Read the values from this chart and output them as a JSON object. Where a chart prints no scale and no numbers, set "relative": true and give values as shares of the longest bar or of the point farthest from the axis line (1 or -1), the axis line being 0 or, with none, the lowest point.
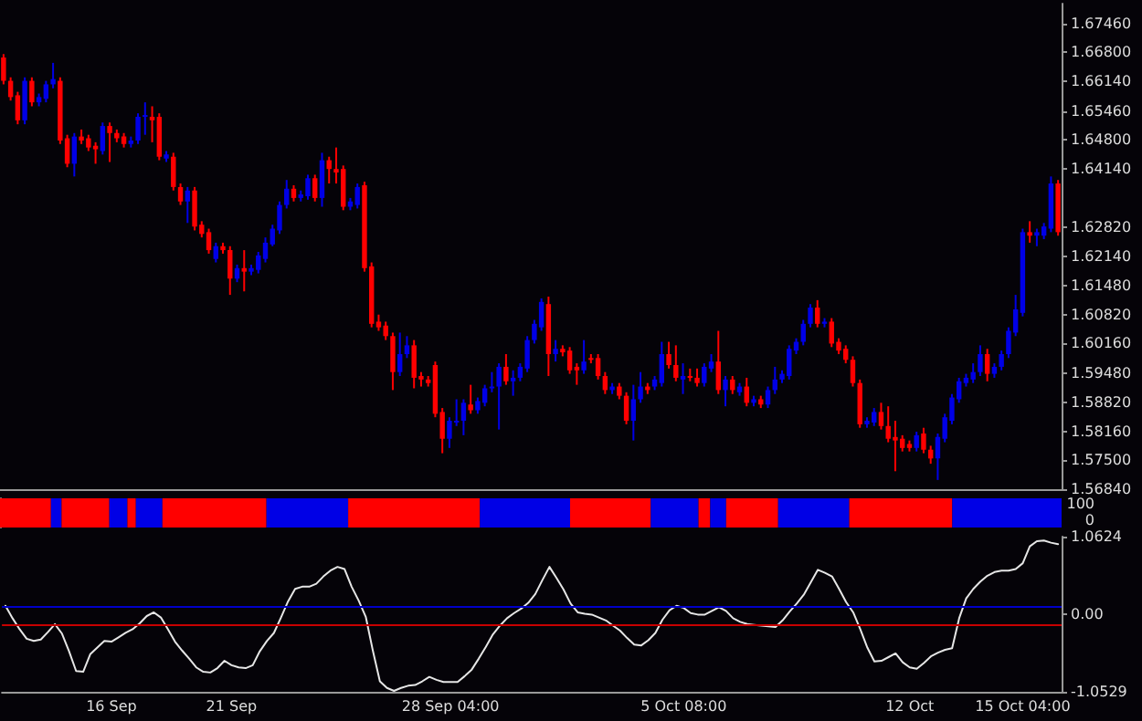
{
  "chart_data": [
    {
      "type": "candlestick",
      "categories": [
        null,
        null,
        null,
        null,
        null,
        null,
        null,
        null,
        null,
        null,
        null,
        null,
        null,
        null,
        null,
        null,
        null,
        null,
        null,
        null,
        null,
        null,
        null,
        null,
        null,
        null,
        null,
        null,
        null,
        null,
        null,
        null,
        null,
        null,
        null,
        null,
        null,
        null,
        null,
        null,
        null,
        null,
        null,
        null,
        null,
        null,
        null,
        null,
        null,
        null,
        null,
        null,
        null,
        null,
        null,
        null,
        null,
        null,
        null,
        null,
        null,
        null,
        null,
        null,
        null,
        null,
        null,
        null,
        null,
        null,
        null,
        null,
        null,
        null,
        null,
        null,
        null,
        null,
        null,
        null,
        null,
        null,
        null,
        null,
        null,
        null,
        null,
        null,
        null,
        null,
        null,
        null,
        null,
        null,
        null,
        null,
        null,
        null,
        null,
        null,
        null,
        null,
        null,
        null,
        null,
        null,
        null,
        null,
        null,
        null,
        null,
        null,
        null,
        null,
        null,
        null,
        null,
        null,
        null,
        null,
        null,
        null,
        null,
        null,
        null,
        null,
        null,
        null,
        null,
        null,
        null,
        null,
        null,
        null,
        null,
        null,
        null,
        null,
        null,
        null,
        null,
        null,
        null,
        null,
        null,
        null,
        null,
        null,
        null,
        null
      ],
      "colors": [
        "#ff0000",
        "#ff0000",
        "#ff0000",
        "#0000e6",
        "#ff0000",
        "#0000e6",
        "#0000e6",
        "#0000e6",
        "#ff0000",
        "#ff0000",
        "#0000e6",
        "#ff0000",
        "#ff0000",
        "#ff0000",
        "#0000e6",
        "#ff0000",
        "#ff0000",
        "#ff0000",
        "#0000e6",
        "#0000e6",
        "#0000e6",
        "#ff0000",
        "#ff0000",
        "#0000e6",
        "#ff0000",
        "#ff0000",
        "#0000e6",
        "#ff0000",
        "#ff0000",
        "#ff0000",
        "#0000e6",
        "#ff0000",
        "#ff0000",
        "#0000e6",
        "#ff0000",
        "#0000e6",
        "#0000e6",
        "#0000e6",
        "#0000e6",
        "#0000e6",
        "#0000e6",
        "#ff0000",
        "#0000e6",
        "#0000e6",
        "#ff0000",
        "#0000e6",
        "#ff0000",
        "#ff0000",
        "#ff0000",
        "#0000e6",
        "#0000e6",
        "#ff0000",
        "#ff0000",
        "#ff0000",
        "#ff0000",
        "#ff0000",
        "#0000e6",
        "#0000e6",
        "#ff0000",
        "#ff0000",
        "#ff0000",
        "#ff0000",
        "#ff0000",
        "#0000e6",
        "#0000e6",
        "#0000e6",
        "#ff0000",
        "#0000e6",
        "#0000e6",
        "#0000e6",
        "#0000e6",
        "#ff0000",
        "#0000e6",
        "#0000e6",
        "#0000e6",
        "#0000e6",
        "#0000e6",
        "#ff0000",
        "#0000e6",
        "#ff0000",
        "#ff0000",
        "#ff0000",
        "#0000e6",
        "#ff0000",
        "#ff0000",
        "#ff0000",
        "#0000e6",
        "#ff0000",
        "#ff0000",
        "#0000e6",
        "#0000e6",
        "#ff0000",
        "#0000e6",
        "#0000e6",
        "#ff0000",
        "#ff0000",
        "#0000e6",
        "#ff0000",
        "#ff0000",
        "#0000e6",
        "#0000e6",
        "#ff0000",
        "#0000e6",
        "#ff0000",
        "#0000e6",
        "#ff0000",
        "#0000e6",
        "#ff0000",
        "#0000e6",
        "#0000e6",
        "#0000e6",
        "#0000e6",
        "#0000e6",
        "#0000e6",
        "#0000e6",
        "#ff0000",
        "#0000e6",
        "#ff0000",
        "#ff0000",
        "#ff0000",
        "#ff0000",
        "#ff0000",
        "#0000e6",
        "#0000e6",
        "#ff0000",
        "#ff0000",
        "#ff0000",
        "#ff0000",
        "#ff0000",
        "#0000e6",
        "#ff0000",
        "#ff0000",
        "#0000e6",
        "#0000e6",
        "#0000e6",
        "#0000e6",
        "#0000e6",
        "#0000e6",
        "#0000e6",
        "#ff0000",
        "#0000e6",
        "#0000e6",
        "#0000e6",
        "#0000e6",
        "#0000e6",
        "#ff0000",
        "#0000e6",
        "#0000e6",
        "#0000e6",
        "#ff0000"
      ],
      "ohlc": [
        [
          1.6668,
          1.6676,
          1.6607,
          1.6615
        ],
        [
          1.6615,
          1.6623,
          1.657,
          1.6578
        ],
        [
          1.6582,
          1.659,
          1.6516,
          1.6525
        ],
        [
          1.6525,
          1.6623,
          1.6516,
          1.6615
        ],
        [
          1.6615,
          1.6623,
          1.6557,
          1.6566
        ],
        [
          1.6566,
          1.6586,
          1.6557,
          1.6578
        ],
        [
          1.6574,
          1.6615,
          1.6566,
          1.6607
        ],
        [
          1.6607,
          1.6656,
          1.6598,
          1.6619
        ],
        [
          1.6615,
          1.6623,
          1.6471,
          1.6479
        ],
        [
          1.6484,
          1.6492,
          1.6418,
          1.6426
        ],
        [
          1.6426,
          1.6496,
          1.6397,
          1.6488
        ],
        [
          1.6488,
          1.6504,
          1.6471,
          1.6479
        ],
        [
          1.6484,
          1.6492,
          1.6455,
          1.6463
        ],
        [
          1.6467,
          1.6475,
          1.6426,
          1.6459
        ],
        [
          1.6455,
          1.652,
          1.6447,
          1.6512
        ],
        [
          1.6512,
          1.652,
          1.643,
          1.6496
        ],
        [
          1.6496,
          1.6504,
          1.6475,
          1.6484
        ],
        [
          1.6488,
          1.6496,
          1.6463,
          1.6471
        ],
        [
          1.6471,
          1.6488,
          1.6463,
          1.6479
        ],
        [
          1.6479,
          1.6541,
          1.6471,
          1.6533
        ],
        [
          1.6537,
          1.6566,
          1.6492,
          1.6537
        ],
        [
          1.6533,
          1.6557,
          1.6475,
          1.6525
        ],
        [
          1.6533,
          1.6541,
          1.6434,
          1.6442
        ],
        [
          1.6438,
          1.6455,
          1.643,
          1.6447
        ],
        [
          1.6442,
          1.6451,
          1.6365,
          1.6373
        ],
        [
          1.6373,
          1.6381,
          1.6332,
          1.634
        ],
        [
          1.634,
          1.6373,
          1.6291,
          1.6365
        ],
        [
          1.6365,
          1.6373,
          1.6274,
          1.6283
        ],
        [
          1.6287,
          1.6295,
          1.6258,
          1.6266
        ],
        [
          1.627,
          1.6278,
          1.6221,
          1.6229
        ],
        [
          1.6209,
          1.6246,
          1.6201,
          1.6238
        ],
        [
          1.6238,
          1.6246,
          1.6221,
          1.6229
        ],
        [
          1.6229,
          1.6238,
          1.6127,
          1.6164
        ],
        [
          1.6164,
          1.6196,
          1.6156,
          1.6188
        ],
        [
          1.6188,
          1.6229,
          1.6135,
          1.618
        ],
        [
          1.618,
          1.6196,
          1.6172,
          1.6188
        ],
        [
          1.6184,
          1.6225,
          1.6176,
          1.6217
        ],
        [
          1.6209,
          1.6258,
          1.6201,
          1.6246
        ],
        [
          1.6242,
          1.6287,
          1.6238,
          1.6278
        ],
        [
          1.6274,
          1.634,
          1.6266,
          1.6332
        ],
        [
          1.6332,
          1.6389,
          1.6324,
          1.6369
        ],
        [
          1.6369,
          1.6377,
          1.634,
          1.6348
        ],
        [
          1.6348,
          1.6365,
          1.634,
          1.6356
        ],
        [
          1.6352,
          1.6401,
          1.6344,
          1.6393
        ],
        [
          1.6393,
          1.6401,
          1.634,
          1.6348
        ],
        [
          1.6348,
          1.6451,
          1.6328,
          1.6434
        ],
        [
          1.6434,
          1.6442,
          1.6381,
          1.6414
        ],
        [
          1.6414,
          1.6463,
          1.6381,
          1.6406
        ],
        [
          1.6414,
          1.6422,
          1.632,
          1.6328
        ],
        [
          1.6328,
          1.6348,
          1.632,
          1.634
        ],
        [
          1.6332,
          1.6381,
          1.6324,
          1.6373
        ],
        [
          1.6377,
          1.6385,
          1.618,
          1.6188
        ],
        [
          1.6192,
          1.6201,
          1.6053,
          1.6061
        ],
        [
          1.6066,
          1.6082,
          1.6045,
          1.6053
        ],
        [
          1.6057,
          1.6066,
          1.6024,
          1.6033
        ],
        [
          1.6033,
          1.6041,
          1.591,
          1.5951
        ],
        [
          1.5951,
          1.6041,
          1.5942,
          1.5992
        ],
        [
          1.5992,
          1.6033,
          1.5983,
          1.6012
        ],
        [
          1.6012,
          1.6024,
          1.5914,
          1.5938
        ],
        [
          1.5942,
          1.5951,
          1.5918,
          1.5934
        ],
        [
          1.5934,
          1.5942,
          1.5918,
          1.5926
        ],
        [
          1.5967,
          1.5975,
          1.5848,
          1.5856
        ],
        [
          1.586,
          1.5869,
          1.5766,
          1.5799
        ],
        [
          1.5799,
          1.5848,
          1.5778,
          1.584
        ],
        [
          1.5836,
          1.5889,
          1.5828,
          1.584
        ],
        [
          1.584,
          1.5889,
          1.5807,
          1.5881
        ],
        [
          1.5877,
          1.5922,
          1.5856,
          1.5864
        ],
        [
          1.5864,
          1.5893,
          1.5856,
          1.5885
        ],
        [
          1.5881,
          1.5922,
          1.5873,
          1.5914
        ],
        [
          1.5914,
          1.5951,
          1.5905,
          1.5918
        ],
        [
          1.5918,
          1.5971,
          1.582,
          1.5963
        ],
        [
          1.5963,
          1.5992,
          1.5922,
          1.593
        ],
        [
          1.593,
          1.5955,
          1.5897,
          1.5938
        ],
        [
          1.5938,
          1.5971,
          1.593,
          1.5963
        ],
        [
          1.5959,
          1.6033,
          1.5951,
          1.6024
        ],
        [
          1.6024,
          1.607,
          1.6016,
          1.6061
        ],
        [
          1.6053,
          1.6119,
          1.6045,
          1.6111
        ],
        [
          1.6106,
          1.6123,
          1.5942,
          1.5992
        ],
        [
          1.5992,
          1.6024,
          1.5975,
          1.6004
        ],
        [
          1.6004,
          1.6012,
          1.5987,
          1.5996
        ],
        [
          1.6,
          1.6008,
          1.5947,
          1.5955
        ],
        [
          1.5963,
          1.5971,
          1.5922,
          1.5955
        ],
        [
          1.5955,
          1.6024,
          1.5947,
          1.5975
        ],
        [
          1.5983,
          1.5992,
          1.5971,
          1.5979
        ],
        [
          1.5983,
          1.5992,
          1.5934,
          1.5942
        ],
        [
          1.5942,
          1.5951,
          1.5901,
          1.591
        ],
        [
          1.591,
          1.5926,
          1.5901,
          1.5918
        ],
        [
          1.5918,
          1.5926,
          1.5889,
          1.5897
        ],
        [
          1.5897,
          1.5905,
          1.5832,
          1.584
        ],
        [
          1.584,
          1.5922,
          1.5795,
          1.5889
        ],
        [
          1.5889,
          1.5951,
          1.5881,
          1.5918
        ],
        [
          1.5918,
          1.5926,
          1.5901,
          1.591
        ],
        [
          1.5918,
          1.5942,
          1.591,
          1.5934
        ],
        [
          1.5926,
          1.602,
          1.5918,
          1.5992
        ],
        [
          1.5992,
          1.602,
          1.5959,
          1.5967
        ],
        [
          1.5967,
          1.6012,
          1.593,
          1.5938
        ],
        [
          1.5934,
          1.5971,
          1.5901,
          1.5942
        ],
        [
          1.5942,
          1.5959,
          1.593,
          1.5938
        ],
        [
          1.5938,
          1.5959,
          1.5918,
          1.5926
        ],
        [
          1.5926,
          1.5971,
          1.5918,
          1.5963
        ],
        [
          1.5959,
          1.5992,
          1.5951,
          1.5975
        ],
        [
          1.5975,
          1.6045,
          1.5901,
          1.591
        ],
        [
          1.591,
          1.5942,
          1.5873,
          1.5934
        ],
        [
          1.5934,
          1.5942,
          1.5901,
          1.591
        ],
        [
          1.5905,
          1.5926,
          1.5897,
          1.5918
        ],
        [
          1.5918,
          1.5938,
          1.5873,
          1.5881
        ],
        [
          1.5881,
          1.5897,
          1.5873,
          1.5889
        ],
        [
          1.5889,
          1.5897,
          1.5869,
          1.5877
        ],
        [
          1.5877,
          1.5918,
          1.5869,
          1.591
        ],
        [
          1.591,
          1.5963,
          1.5901,
          1.5934
        ],
        [
          1.5934,
          1.5955,
          1.5926,
          1.5947
        ],
        [
          1.5942,
          1.6012,
          1.5934,
          1.6004
        ],
        [
          1.6,
          1.6028,
          1.5992,
          1.602
        ],
        [
          1.602,
          1.607,
          1.6012,
          1.6061
        ],
        [
          1.6061,
          1.6106,
          1.6053,
          1.6098
        ],
        [
          1.6098,
          1.6115,
          1.6053,
          1.6061
        ],
        [
          1.6061,
          1.6074,
          1.6053,
          1.6066
        ],
        [
          1.6066,
          1.6074,
          1.6008,
          1.6016
        ],
        [
          1.602,
          1.6028,
          1.5992,
          1.6
        ],
        [
          1.6004,
          1.6012,
          1.5971,
          1.5979
        ],
        [
          1.5979,
          1.5987,
          1.5918,
          1.5926
        ],
        [
          1.5926,
          1.5934,
          1.5824,
          1.5832
        ],
        [
          1.5832,
          1.5848,
          1.5824,
          1.584
        ],
        [
          1.5836,
          1.5869,
          1.5828,
          1.586
        ],
        [
          1.586,
          1.5881,
          1.582,
          1.5828
        ],
        [
          1.5828,
          1.5873,
          1.5791,
          1.5799
        ],
        [
          1.5803,
          1.584,
          1.5725,
          1.5795
        ],
        [
          1.5799,
          1.5807,
          1.577,
          1.5778
        ],
        [
          1.5787,
          1.5795,
          1.577,
          1.5778
        ],
        [
          1.5778,
          1.5815,
          1.577,
          1.5807
        ],
        [
          1.5811,
          1.5824,
          1.5766,
          1.5774
        ],
        [
          1.5774,
          1.5783,
          1.5742,
          1.5754
        ],
        [
          1.5754,
          1.5811,
          1.5705,
          1.5803
        ],
        [
          1.5799,
          1.5856,
          1.5791,
          1.5848
        ],
        [
          1.584,
          1.5901,
          1.5832,
          1.5893
        ],
        [
          1.5889,
          1.5938,
          1.5881,
          1.593
        ],
        [
          1.5926,
          1.5947,
          1.5918,
          1.5938
        ],
        [
          1.5934,
          1.5971,
          1.5926,
          1.5951
        ],
        [
          1.5951,
          1.6012,
          1.5942,
          1.5992
        ],
        [
          1.5992,
          1.6004,
          1.593,
          1.5947
        ],
        [
          1.5947,
          1.5971,
          1.5938,
          1.5963
        ],
        [
          1.5963,
          1.6,
          1.5955,
          1.5992
        ],
        [
          1.5992,
          1.6053,
          1.5983,
          1.6045
        ],
        [
          1.6041,
          1.6127,
          1.6033,
          1.6094
        ],
        [
          1.6086,
          1.6278,
          1.6078,
          1.627
        ],
        [
          1.627,
          1.6295,
          1.6246,
          1.6262
        ],
        [
          1.6262,
          1.6278,
          1.6238,
          1.627
        ],
        [
          1.6262,
          1.6291,
          1.6254,
          1.6283
        ],
        [
          1.6278,
          1.6397,
          1.627,
          1.6381
        ],
        [
          1.6381,
          1.6389,
          1.6262,
          1.627
        ]
      ],
      "ylim": [
        1.5684,
        1.6791
      ],
      "yticks": [
        {
          "value": 1.6746,
          "label": "1.67460"
        },
        {
          "value": 1.668,
          "label": "1.66800"
        },
        {
          "value": 1.6614,
          "label": "1.66140"
        },
        {
          "value": 1.6546,
          "label": "1.65460"
        },
        {
          "value": 1.648,
          "label": "1.64800"
        },
        {
          "value": 1.6414,
          "label": "1.64140"
        },
        {
          "value": 1.6282,
          "label": "1.62820"
        },
        {
          "value": 1.6214,
          "label": "1.62140"
        },
        {
          "value": 1.6148,
          "label": "1.61480"
        },
        {
          "value": 1.6082,
          "label": "1.60820"
        },
        {
          "value": 1.6016,
          "label": "1.60160"
        },
        {
          "value": 1.5948,
          "label": "1.59480"
        },
        {
          "value": 1.5882,
          "label": "1.58820"
        },
        {
          "value": 1.5816,
          "label": "1.58160"
        },
        {
          "value": 1.575,
          "label": "1.57500"
        },
        {
          "value": 1.5684,
          "label": "1.56840"
        }
      ],
      "tick_labels": "y",
      "grid": false
    },
    {
      "type": "bar",
      "orientation": "horizontal",
      "stacked": true,
      "relative": true,
      "categories": [
        null
      ],
      "annotations": [
        "100",
        "0"
      ],
      "series": [
        {
          "color": "#ff0000",
          "values": [
            0.048
          ]
        },
        {
          "color": "#0000e6",
          "values": [
            0.01
          ]
        },
        {
          "color": "#ff0000",
          "values": [
            0.045
          ]
        },
        {
          "color": "#0000e6",
          "values": [
            0.017
          ]
        },
        {
          "color": "#ff0000",
          "values": [
            0.008
          ]
        },
        {
          "color": "#0000e6",
          "values": [
            0.025
          ]
        },
        {
          "color": "#ff0000",
          "values": [
            0.098
          ]
        },
        {
          "color": "#0000e6",
          "values": [
            0.077
          ]
        },
        {
          "color": "#ff0000",
          "values": [
            0.124
          ]
        },
        {
          "color": "#0000e6",
          "values": [
            0.085
          ]
        },
        {
          "color": "#ff0000",
          "values": [
            0.076
          ]
        },
        {
          "color": "#0000e6",
          "values": [
            0.045
          ]
        },
        {
          "color": "#ff0000",
          "values": [
            0.011
          ]
        },
        {
          "color": "#0000e6",
          "values": [
            0.015
          ]
        },
        {
          "color": "#ff0000",
          "values": [
            0.049
          ]
        },
        {
          "color": "#0000e6",
          "values": [
            0.067
          ]
        },
        {
          "color": "#ff0000",
          "values": [
            0.097
          ]
        },
        {
          "color": "#0000e6",
          "values": [
            0.103
          ]
        }
      ]
    },
    {
      "type": "line",
      "categories": [
        null,
        null,
        null,
        null,
        null,
        null,
        null,
        null,
        null,
        null,
        null,
        null,
        null,
        null,
        null,
        "16 Sep",
        null,
        null,
        null,
        null,
        null,
        null,
        null,
        null,
        null,
        null,
        null,
        null,
        null,
        null,
        null,
        null,
        "21 Sep",
        null,
        null,
        null,
        null,
        null,
        null,
        null,
        null,
        null,
        null,
        null,
        null,
        null,
        null,
        null,
        null,
        null,
        null,
        null,
        null,
        null,
        null,
        null,
        null,
        null,
        null,
        null,
        null,
        null,
        null,
        "28 Sep 04:00",
        null,
        null,
        null,
        null,
        null,
        null,
        null,
        null,
        null,
        null,
        null,
        null,
        null,
        null,
        null,
        null,
        null,
        null,
        null,
        null,
        null,
        null,
        null,
        null,
        null,
        null,
        null,
        null,
        null,
        null,
        null,
        null,
        "5 Oct 08:00",
        null,
        null,
        null,
        null,
        null,
        null,
        null,
        null,
        null,
        null,
        null,
        null,
        null,
        null,
        null,
        null,
        null,
        null,
        null,
        null,
        null,
        null,
        null,
        null,
        null,
        null,
        null,
        null,
        null,
        null,
        null,
        "12 Oct",
        null,
        null,
        null,
        null,
        null,
        null,
        null,
        null,
        null,
        null,
        null,
        null,
        null,
        null,
        null,
        "15 Oct 04:00",
        null,
        null,
        null,
        null,
        null
      ],
      "series": [
        {
          "color": "#e6e6e6",
          "values": [
            0.12,
            -0.05,
            -0.2,
            -0.33,
            -0.36,
            -0.34,
            -0.24,
            -0.13,
            -0.26,
            -0.5,
            -0.77,
            -0.78,
            -0.54,
            -0.45,
            -0.36,
            -0.37,
            -0.31,
            -0.25,
            -0.2,
            -0.12,
            -0.02,
            0.03,
            -0.04,
            -0.2,
            -0.37,
            -0.49,
            -0.6,
            -0.72,
            -0.78,
            -0.79,
            -0.73,
            -0.63,
            -0.69,
            -0.72,
            -0.73,
            -0.69,
            -0.5,
            -0.36,
            -0.25,
            -0.04,
            0.18,
            0.35,
            0.38,
            0.38,
            0.42,
            0.52,
            0.6,
            0.65,
            0.62,
            0.38,
            0.19,
            -0.03,
            -0.49,
            -0.91,
            -1.0,
            -1.04,
            -1.0,
            -0.97,
            -0.96,
            -0.91,
            -0.85,
            -0.89,
            -0.92,
            -0.92,
            -0.92,
            -0.84,
            -0.75,
            -0.6,
            -0.44,
            -0.27,
            -0.15,
            -0.05,
            0.02,
            0.08,
            0.16,
            0.28,
            0.47,
            0.65,
            0.5,
            0.34,
            0.15,
            0.03,
            0.01,
            0,
            -0.04,
            -0.08,
            -0.15,
            -0.22,
            -0.32,
            -0.41,
            -0.42,
            -0.35,
            -0.25,
            -0.07,
            0.06,
            0.12,
            0.09,
            0.02,
            0,
            0,
            0.05,
            0.1,
            0.05,
            -0.05,
            -0.1,
            -0.13,
            -0.14,
            -0.15,
            -0.16,
            -0.17,
            -0.08,
            0.04,
            0.15,
            0.27,
            0.44,
            0.61,
            0.57,
            0.52,
            0.35,
            0.17,
            0.03,
            -0.2,
            -0.45,
            -0.64,
            -0.63,
            -0.58,
            -0.53,
            -0.65,
            -0.72,
            -0.74,
            -0.66,
            -0.57,
            -0.52,
            -0.48,
            -0.46,
            -0.05,
            0.22,
            0.35,
            0.45,
            0.53,
            0.58,
            0.6,
            0.6,
            0.62,
            0.7,
            0.93,
            1.0,
            1.01,
            0.98,
            0.96
          ]
        }
      ],
      "ylim": [
        -1.0529,
        1.0624
      ],
      "yticks": [
        -1.0529,
        {
          "value": 0,
          "label": "0.00"
        },
        1.0624
      ],
      "ref_lines": [
        {
          "axis": "y",
          "value": 0.12,
          "color": "#0000c8"
        },
        {
          "axis": "y",
          "value": -0.14,
          "color": "#c80000"
        }
      ],
      "marker": "none",
      "line_style": "solid",
      "grid": false
    }
  ]
}
